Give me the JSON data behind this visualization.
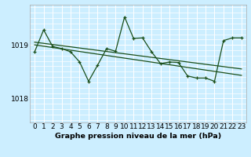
{
  "title": "Graphe pression niveau de la mer (hPa)",
  "bg_color": "#cceeff",
  "plot_bg_color": "#cceeff",
  "line_color": "#1a4f1a",
  "grid_color": "#ffffff",
  "yticks": [
    1018,
    1019
  ],
  "ylim": [
    1017.55,
    1019.75
  ],
  "xlim": [
    -0.5,
    23.5
  ],
  "xticks": [
    0,
    1,
    2,
    3,
    4,
    5,
    6,
    7,
    8,
    9,
    10,
    11,
    12,
    13,
    14,
    15,
    16,
    17,
    18,
    19,
    20,
    21,
    22,
    23
  ],
  "series": [
    [
      0,
      1018.87
    ],
    [
      1,
      1019.28
    ],
    [
      2,
      1018.97
    ],
    [
      3,
      1018.93
    ],
    [
      4,
      1018.87
    ],
    [
      5,
      1018.68
    ],
    [
      6,
      1018.32
    ],
    [
      7,
      1018.62
    ],
    [
      8,
      1018.93
    ],
    [
      9,
      1018.88
    ],
    [
      10,
      1019.52
    ],
    [
      11,
      1019.12
    ],
    [
      12,
      1019.13
    ],
    [
      13,
      1018.87
    ],
    [
      14,
      1018.65
    ],
    [
      15,
      1018.68
    ],
    [
      16,
      1018.67
    ],
    [
      17,
      1018.42
    ],
    [
      18,
      1018.38
    ],
    [
      19,
      1018.38
    ],
    [
      20,
      1018.32
    ],
    [
      21,
      1019.08
    ],
    [
      22,
      1019.13
    ],
    [
      23,
      1019.13
    ]
  ],
  "trend_line": [
    [
      0,
      1019.05
    ],
    [
      23,
      1018.55
    ]
  ],
  "trend_line2": [
    [
      0,
      1019.0
    ],
    [
      23,
      1018.43
    ]
  ],
  "xlabel_fontsize": 6.5,
  "ylabel_fontsize": 6.5,
  "title_fontsize": 6.8
}
